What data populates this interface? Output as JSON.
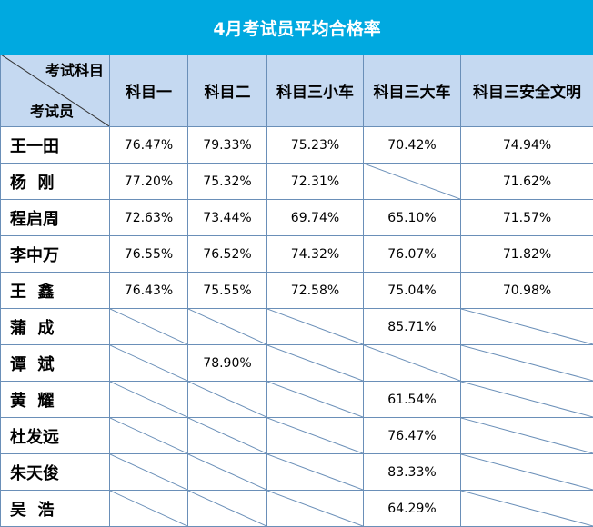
{
  "title": "4月考试员平均合格率",
  "corner": {
    "top": "考试科目",
    "bottom": "考试员"
  },
  "columns": [
    "科目一",
    "科目二",
    "科目三小车",
    "科目三大车",
    "科目三安全文明"
  ],
  "rows": [
    {
      "name": "王一田",
      "values": [
        "76.47%",
        "79.33%",
        "75.23%",
        "70.42%",
        "74.94%"
      ]
    },
    {
      "name": "杨  刚",
      "values": [
        "77.20%",
        "75.32%",
        "72.31%",
        null,
        "71.62%"
      ]
    },
    {
      "name": "程启周",
      "values": [
        "72.63%",
        "73.44%",
        "69.74%",
        "65.10%",
        "71.57%"
      ]
    },
    {
      "name": "李中万",
      "values": [
        "76.55%",
        "76.52%",
        "74.32%",
        "76.07%",
        "71.82%"
      ]
    },
    {
      "name": "王  鑫",
      "values": [
        "76.43%",
        "75.55%",
        "72.58%",
        "75.04%",
        "70.98%"
      ]
    },
    {
      "name": "蒲  成",
      "values": [
        null,
        null,
        null,
        "85.71%",
        null
      ]
    },
    {
      "name": "谭  斌",
      "values": [
        null,
        "78.90%",
        null,
        null,
        null
      ]
    },
    {
      "name": "黄  耀",
      "values": [
        null,
        null,
        null,
        "61.54%",
        null
      ]
    },
    {
      "name": "杜发远",
      "values": [
        null,
        null,
        null,
        "76.47%",
        null
      ]
    },
    {
      "name": "朱天俊",
      "values": [
        null,
        null,
        null,
        "83.33%",
        null
      ]
    },
    {
      "name": "吴  浩",
      "values": [
        null,
        null,
        null,
        "64.29%",
        null
      ]
    }
  ],
  "colors": {
    "title_bg": "#00a9e0",
    "header_bg": "#c5d9f1",
    "border": "#6a8fb8",
    "slash": "#6a8fb8"
  }
}
